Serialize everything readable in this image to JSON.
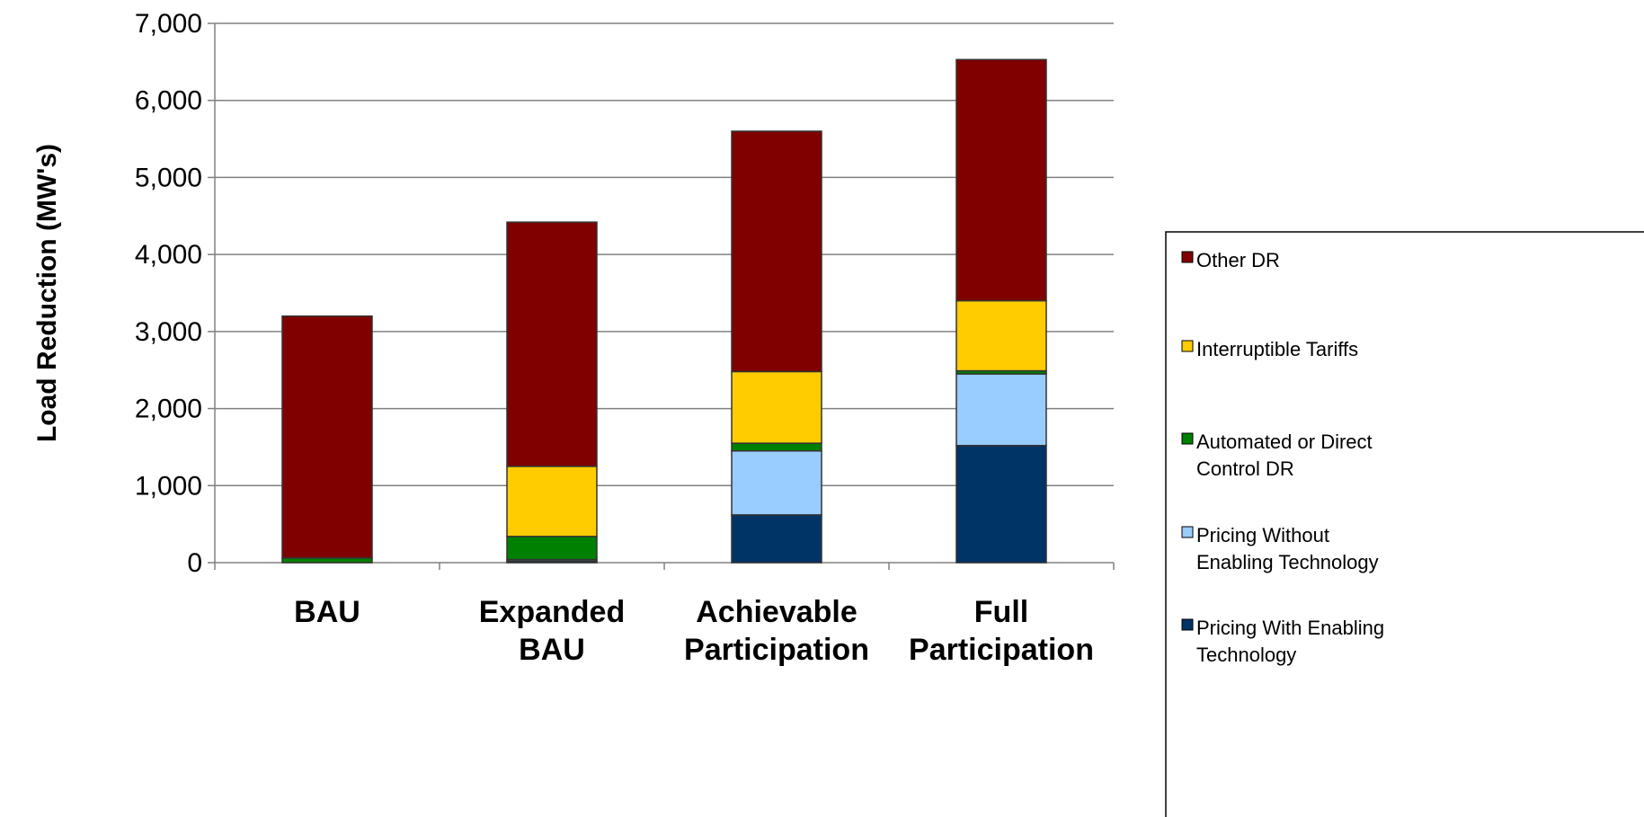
{
  "chart_data": {
    "type": "bar",
    "stacked": true,
    "categories": [
      [
        "BAU"
      ],
      [
        "Expanded",
        "BAU"
      ],
      [
        "Achievable",
        "Participation"
      ],
      [
        "Full",
        "Participation"
      ]
    ],
    "ylabel": "Load Reduction (MW's)",
    "xlabel": "",
    "ylim": [
      0,
      7000
    ],
    "yticks": [
      "0",
      "1,000",
      "2,000",
      "3,000",
      "4,000",
      "5,000",
      "6,000",
      "7,000"
    ],
    "grid": true,
    "legend_position": "right",
    "series": [
      {
        "name": "Pricing With Enabling Technology",
        "legend_lines": [
          "Pricing With Enabling",
          "Technology"
        ],
        "color": "#003366",
        "values": [
          0,
          20,
          620,
          1520
        ]
      },
      {
        "name": "Pricing Without Enabling Technology",
        "legend_lines": [
          "Pricing Without",
          "Enabling Technology"
        ],
        "color": "#99CCFF",
        "values": [
          0,
          20,
          830,
          930
        ]
      },
      {
        "name": "Automated or Direct Control DR",
        "legend_lines": [
          "Automated or Direct",
          "Control DR"
        ],
        "color": "#008000",
        "values": [
          60,
          300,
          100,
          40
        ]
      },
      {
        "name": "Interruptible Tariffs",
        "legend_lines": [
          "Interruptible Tariffs"
        ],
        "color": "#FFCC00",
        "values": [
          0,
          910,
          930,
          910
        ]
      },
      {
        "name": "Other DR",
        "legend_lines": [
          "Other DR"
        ],
        "color": "#800000",
        "values": [
          3140,
          3170,
          3120,
          3130
        ]
      }
    ]
  }
}
